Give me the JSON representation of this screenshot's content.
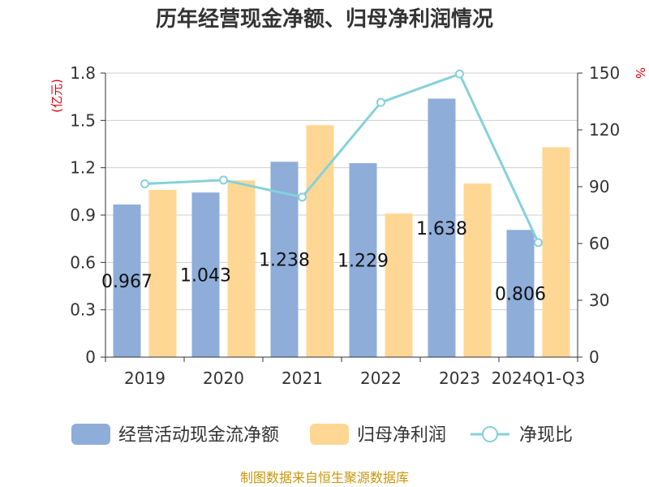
{
  "chart_data": {
    "type": "bar+line",
    "title": "历年经营现金净额、归母净利润情况",
    "categories": [
      "2019",
      "2020",
      "2021",
      "2022",
      "2023",
      "2024Q1-Q3"
    ],
    "series": [
      {
        "name": "经营活动现金流净额",
        "type": "bar",
        "axis": "left",
        "color": "#8eadd9",
        "values": [
          0.967,
          1.043,
          1.238,
          1.229,
          1.638,
          0.806
        ],
        "labels": [
          "0.967",
          "1.043",
          "1.238",
          "1.229",
          "1.638",
          "0.806"
        ]
      },
      {
        "name": "归母净利润",
        "type": "bar",
        "axis": "left",
        "color": "#ffd794",
        "values": [
          1.06,
          1.12,
          1.47,
          0.91,
          1.1,
          1.33
        ]
      },
      {
        "name": "净现比",
        "type": "line",
        "axis": "right",
        "color": "#86d1d9",
        "values": [
          91.5,
          93.5,
          84.5,
          134.5,
          149.5,
          60.5
        ]
      }
    ],
    "y_left": {
      "unit": "(亿元)",
      "min": 0,
      "max": 1.8,
      "ticks": [
        "0",
        "0.3",
        "0.6",
        "0.9",
        "1.2",
        "1.5",
        "1.8"
      ]
    },
    "y_right": {
      "unit": "%",
      "min": 0,
      "max": 150,
      "ticks": [
        "0",
        "30",
        "60",
        "90",
        "120",
        "150"
      ]
    },
    "grid": true,
    "legend": "bottom"
  },
  "source": "制图数据来自恒生聚源数据库"
}
